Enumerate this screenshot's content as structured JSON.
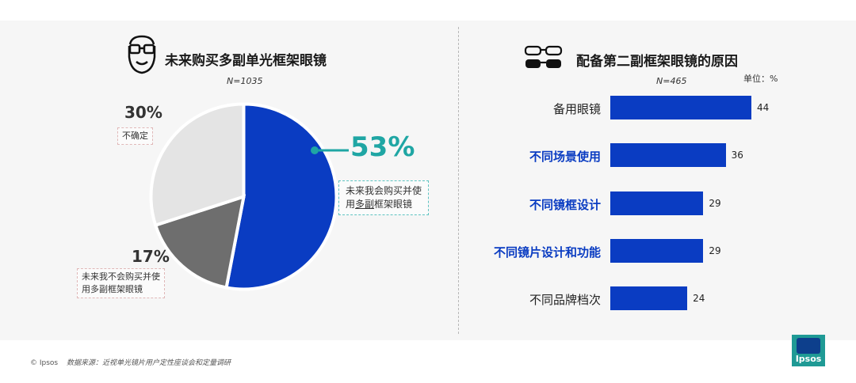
{
  "left": {
    "title": "未来购买多副单光框架眼镜",
    "n_label": "N=1035",
    "callout_yes_line1": "未来我会购买并使",
    "callout_yes_pre": "用",
    "callout_yes_u": "多副",
    "callout_yes_post": "框架眼镜",
    "callout_no_line1": "未来我不会购买并使",
    "callout_no_line2": "用多副框架眼镜",
    "callout_unsure": "不确定"
  },
  "right": {
    "title": "配备第二副框架眼镜的原因",
    "n_label": "N=465",
    "unit_label": "单位：%"
  },
  "footer": {
    "brand": "© Ipsos",
    "source": "数据来源：近视单光镜片用户定性座谈会和定量调研"
  },
  "logo": {
    "text": "Ipsos"
  },
  "colors": {
    "blue": "#0a3cc2",
    "dark_gray": "#6e6e6e",
    "light_gray": "#e4e4e4",
    "teal": "#1fa6a4"
  },
  "chart_data": [
    {
      "type": "pie",
      "title": "未来购买多副单光框架眼镜",
      "slices": [
        {
          "label": "未来我会购买并使用多副框架眼镜",
          "value": 53,
          "display": "53%",
          "color": "#0a3cc2"
        },
        {
          "label": "未来我不会购买并使用多副框架眼镜",
          "value": 17,
          "display": "17%",
          "color": "#6e6e6e"
        },
        {
          "label": "不确定",
          "value": 30,
          "display": "30%",
          "color": "#e4e4e4"
        }
      ]
    },
    {
      "type": "bar",
      "orientation": "horizontal",
      "title": "配备第二副框架眼镜的原因",
      "categories": [
        "备用眼镜",
        "不同场景使用",
        "不同镜框设计",
        "不同镜片设计和功能",
        "不同品牌档次"
      ],
      "values": [
        44,
        36,
        29,
        29,
        24
      ],
      "category_colors": [
        "#222222",
        "#0a3cc2",
        "#0a3cc2",
        "#0a3cc2",
        "#222222"
      ],
      "category_bold": [
        false,
        true,
        true,
        true,
        false
      ],
      "xlim": [
        0,
        50
      ]
    }
  ]
}
